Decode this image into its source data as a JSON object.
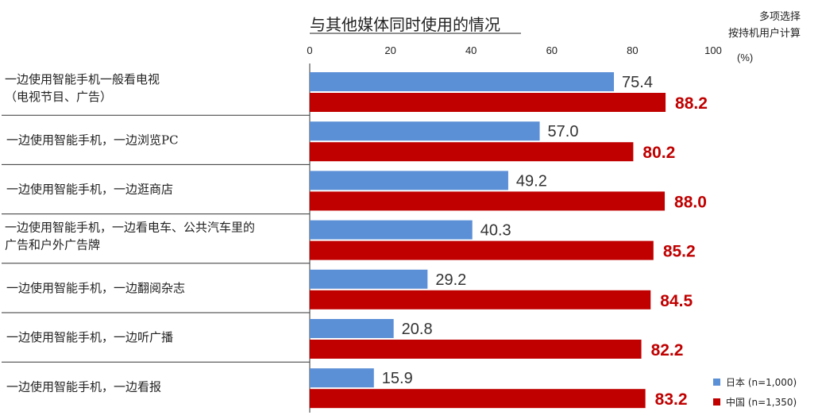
{
  "chart_data": {
    "type": "bar",
    "orientation": "horizontal",
    "title": "与其他媒体同时使用的情况",
    "notes": [
      "多项选择",
      "按持机用户计算"
    ],
    "unit_label": "(%)",
    "xlim": [
      0,
      100
    ],
    "ticks": [
      0,
      20,
      40,
      60,
      80,
      100
    ],
    "categories": [
      [
        "一边使用智能手机一般看电视",
        "（电视节目、广告）"
      ],
      [
        "一边使用智能手机，一边浏览PC"
      ],
      [
        "一边使用智能手机，一边逛商店"
      ],
      [
        "一边使用智能手机，一边看电车、公共汽车里的",
        "广告和户外广告牌"
      ],
      [
        "一边使用智能手机，一边翻阅杂志"
      ],
      [
        "一边使用智能手机，一边听广播"
      ],
      [
        "一边使用智能手机，一边看报"
      ]
    ],
    "series": [
      {
        "name": "日本 (n=1,000)",
        "color": "#5b8fd6",
        "values": [
          75.4,
          57.0,
          49.2,
          40.3,
          29.2,
          20.8,
          15.9
        ]
      },
      {
        "name": "中国 (n=1,350)",
        "color": "#c00000",
        "values": [
          88.2,
          80.2,
          88.0,
          85.2,
          84.5,
          82.2,
          83.2
        ]
      }
    ],
    "legend_position": "bottom-right",
    "grid": false
  }
}
